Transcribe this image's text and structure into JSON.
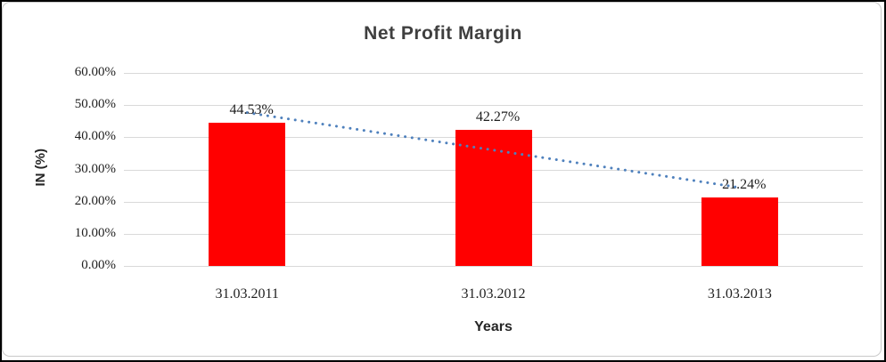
{
  "chart_data": {
    "type": "bar",
    "title": "Net Profit Margin",
    "categories": [
      "31.03.2011",
      "31.03.2012",
      "31.03.2013"
    ],
    "values": [
      44.53,
      42.27,
      21.24
    ],
    "data_labels": [
      "44.53%",
      "42.27%",
      "21.24%"
    ],
    "xlabel": "Years",
    "ylabel": "IN (%)",
    "ylim": [
      0,
      60
    ],
    "ytick_step": 10,
    "ytick_labels": [
      "0.00%",
      "10.00%",
      "20.00%",
      "30.00%",
      "40.00%",
      "50.00%",
      "60.00%"
    ],
    "grid": true,
    "legend": "none",
    "trendline": {
      "type": "linear",
      "style": "dotted"
    },
    "colors": {
      "bar": "#FF0000",
      "trendline": "#4F81BD",
      "gridline": "#D9D9D9",
      "tick_text": "#1F1F1F",
      "title_text": "#3F3F3F"
    }
  }
}
